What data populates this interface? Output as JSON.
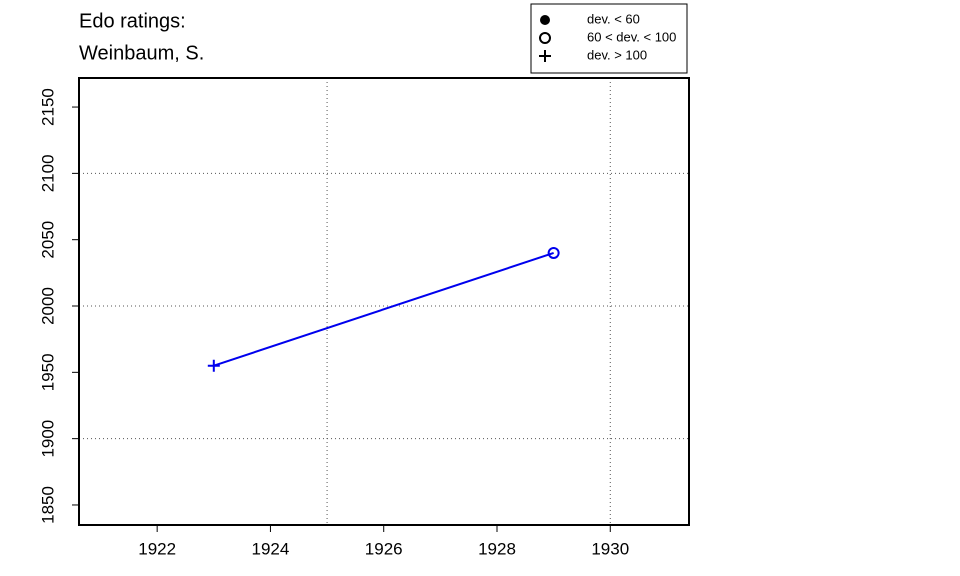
{
  "chart_data": {
    "type": "line",
    "title": "Edo ratings:",
    "subtitle": "Weinbaum, S.",
    "x": [
      1923,
      1929
    ],
    "series": [
      {
        "color": "#0000ee",
        "values": [
          1955,
          2040
        ],
        "markers": [
          "plus",
          "circle"
        ]
      }
    ],
    "xlim": [
      1920.62,
      1931.39
    ],
    "ylim": [
      1834.9,
      2171.9
    ],
    "xticks": [
      1922,
      1924,
      1926,
      1928,
      1930
    ],
    "yticks": [
      1850,
      1900,
      1950,
      2000,
      2050,
      2100,
      2150
    ],
    "grid_x": [
      1925,
      1930
    ],
    "grid_y": [
      1900,
      2000,
      2100
    ],
    "legend": {
      "position": "top-right",
      "entries": [
        {
          "label": "dev. < 60",
          "marker": "dot"
        },
        {
          "label": "60 < dev. < 100",
          "marker": "circle"
        },
        {
          "label": "dev. > 100",
          "marker": "plus"
        }
      ]
    }
  }
}
